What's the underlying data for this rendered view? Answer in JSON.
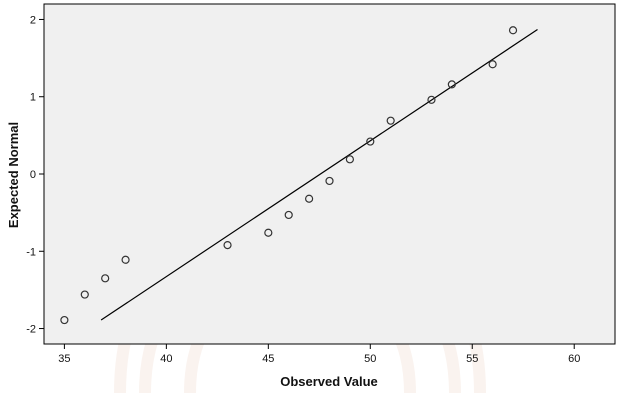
{
  "chart_data": {
    "type": "scatter",
    "title": "",
    "xlabel": "Observed Value",
    "ylabel": "Expected Normal",
    "xlim": [
      34,
      62
    ],
    "ylim": [
      -2.2,
      2.2
    ],
    "x_ticks": [
      35,
      40,
      45,
      50,
      55,
      60
    ],
    "y_ticks": [
      -2,
      -1,
      0,
      1,
      2
    ],
    "grid": false,
    "legend": "none",
    "colors": {
      "plot_background": "#f0f0f0",
      "frame": "#000000",
      "point_stroke": "#333333",
      "line": "#000000"
    },
    "points": {
      "x": [
        35,
        36,
        37,
        38,
        43,
        45,
        46,
        47,
        48,
        49,
        50,
        51,
        53,
        54,
        56,
        57
      ],
      "y": [
        -1.89,
        -1.56,
        -1.35,
        -1.11,
        -0.92,
        -0.76,
        -0.53,
        -0.32,
        -0.09,
        0.19,
        0.42,
        0.69,
        0.96,
        1.16,
        1.42,
        1.86
      ]
    },
    "reference_line": {
      "x": [
        36.8,
        58.2
      ],
      "y": [
        -1.89,
        1.87
      ]
    }
  }
}
